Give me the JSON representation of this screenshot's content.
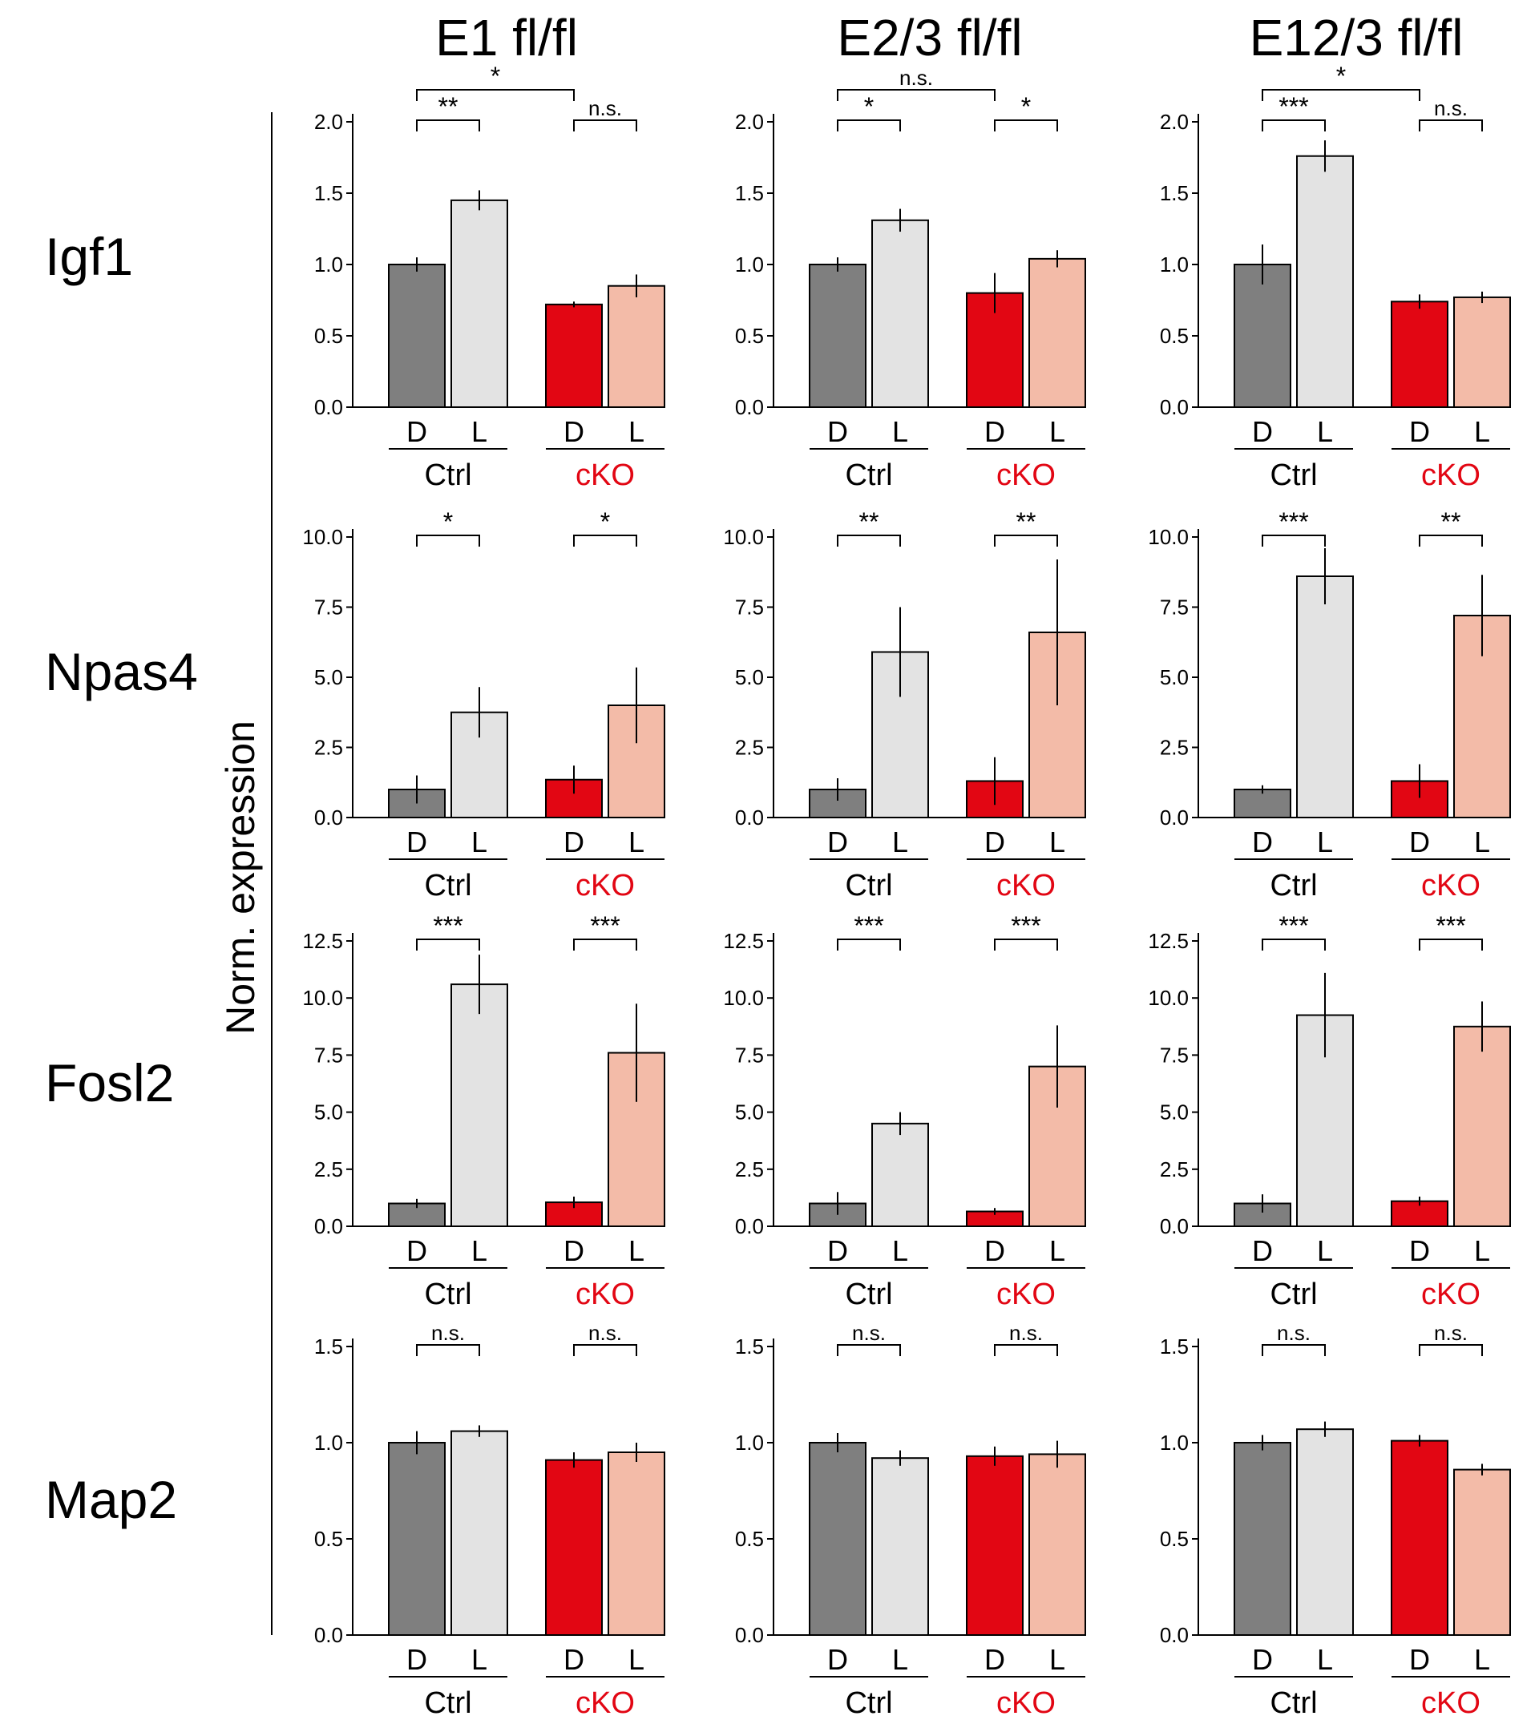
{
  "figure": {
    "column_titles": [
      "E1 fl/fl",
      "E2/3 fl/fl",
      "E12/3 fl/fl"
    ],
    "row_labels": [
      "Igf1",
      "Npas4",
      "Fosl2",
      "Map2"
    ],
    "y_axis_label": "Norm. expression",
    "bar_labels": [
      "D",
      "L",
      "D",
      "L"
    ],
    "group_labels": [
      "Ctrl",
      "cKO"
    ],
    "colors": {
      "ctrl_dark": "#7f7f7f",
      "ctrl_light": "#e3e3e3",
      "cko_dark": "#e20613",
      "cko_light": "#f3bba8",
      "cko_text": "#e20613",
      "text": "#000000"
    }
  },
  "chart_data": [
    {
      "type": "bar",
      "gene": "Igf1",
      "column": "E1 fl/fl",
      "categories": [
        "Ctrl D",
        "Ctrl L",
        "cKO D",
        "cKO L"
      ],
      "values": [
        1.0,
        1.45,
        0.72,
        0.85
      ],
      "errors": [
        0.05,
        0.07,
        0.02,
        0.08
      ],
      "ylim": [
        0,
        2.0
      ],
      "yticks": [
        0.0,
        0.5,
        1.0,
        1.5,
        2.0
      ],
      "ytick_labels": [
        "0.0",
        "0.5",
        "1.0",
        "1.5",
        "2.0"
      ],
      "significance": [
        {
          "pair": [
            0,
            1
          ],
          "label": "**",
          "level": 1
        },
        {
          "pair": [
            2,
            3
          ],
          "label": "n.s.",
          "level": 1
        },
        {
          "pair": [
            0,
            2
          ],
          "label": "*",
          "level": 2
        }
      ]
    },
    {
      "type": "bar",
      "gene": "Igf1",
      "column": "E2/3 fl/fl",
      "categories": [
        "Ctrl D",
        "Ctrl L",
        "cKO D",
        "cKO L"
      ],
      "values": [
        1.0,
        1.31,
        0.8,
        1.04
      ],
      "errors": [
        0.05,
        0.08,
        0.14,
        0.06
      ],
      "ylim": [
        0,
        2.0
      ],
      "yticks": [
        0.0,
        0.5,
        1.0,
        1.5,
        2.0
      ],
      "ytick_labels": [
        "0.0",
        "0.5",
        "1.0",
        "1.5",
        "2.0"
      ],
      "significance": [
        {
          "pair": [
            0,
            1
          ],
          "label": "*",
          "level": 1
        },
        {
          "pair": [
            2,
            3
          ],
          "label": "*",
          "level": 1
        },
        {
          "pair": [
            0,
            2
          ],
          "label": "n.s.",
          "level": 2
        }
      ]
    },
    {
      "type": "bar",
      "gene": "Igf1",
      "column": "E12/3 fl/fl",
      "categories": [
        "Ctrl D",
        "Ctrl L",
        "cKO D",
        "cKO L"
      ],
      "values": [
        1.0,
        1.76,
        0.74,
        0.77
      ],
      "errors": [
        0.14,
        0.11,
        0.05,
        0.04
      ],
      "ylim": [
        0,
        2.0
      ],
      "yticks": [
        0.0,
        0.5,
        1.0,
        1.5,
        2.0
      ],
      "ytick_labels": [
        "0.0",
        "0.5",
        "1.0",
        "1.5",
        "2.0"
      ],
      "significance": [
        {
          "pair": [
            0,
            1
          ],
          "label": "***",
          "level": 1
        },
        {
          "pair": [
            2,
            3
          ],
          "label": "n.s.",
          "level": 1
        },
        {
          "pair": [
            0,
            2
          ],
          "label": "*",
          "level": 2
        }
      ]
    },
    {
      "type": "bar",
      "gene": "Npas4",
      "column": "E1 fl/fl",
      "categories": [
        "Ctrl D",
        "Ctrl L",
        "cKO D",
        "cKO L"
      ],
      "values": [
        1.0,
        3.75,
        1.35,
        4.0
      ],
      "errors": [
        0.5,
        0.9,
        0.5,
        1.35
      ],
      "ylim": [
        0,
        10.0
      ],
      "yticks": [
        0.0,
        2.5,
        5.0,
        7.5,
        10.0
      ],
      "ytick_labels": [
        "0.0",
        "2.5",
        "5.0",
        "7.5",
        "10.0"
      ],
      "significance": [
        {
          "pair": [
            0,
            1
          ],
          "label": "*",
          "level": 1
        },
        {
          "pair": [
            2,
            3
          ],
          "label": "*",
          "level": 1
        }
      ]
    },
    {
      "type": "bar",
      "gene": "Npas4",
      "column": "E2/3 fl/fl",
      "categories": [
        "Ctrl D",
        "Ctrl L",
        "cKO D",
        "cKO L"
      ],
      "values": [
        1.0,
        5.9,
        1.3,
        6.6
      ],
      "errors": [
        0.4,
        1.6,
        0.85,
        2.6
      ],
      "ylim": [
        0,
        10.0
      ],
      "yticks": [
        0.0,
        2.5,
        5.0,
        7.5,
        10.0
      ],
      "ytick_labels": [
        "0.0",
        "2.5",
        "5.0",
        "7.5",
        "10.0"
      ],
      "significance": [
        {
          "pair": [
            0,
            1
          ],
          "label": "**",
          "level": 1
        },
        {
          "pair": [
            2,
            3
          ],
          "label": "**",
          "level": 1
        }
      ]
    },
    {
      "type": "bar",
      "gene": "Npas4",
      "column": "E12/3 fl/fl",
      "categories": [
        "Ctrl D",
        "Ctrl L",
        "cKO D",
        "cKO L"
      ],
      "values": [
        1.0,
        8.6,
        1.3,
        7.2
      ],
      "errors": [
        0.15,
        1.0,
        0.6,
        1.45
      ],
      "ylim": [
        0,
        10.0
      ],
      "yticks": [
        0.0,
        2.5,
        5.0,
        7.5,
        10.0
      ],
      "ytick_labels": [
        "0.0",
        "2.5",
        "5.0",
        "7.5",
        "10.0"
      ],
      "significance": [
        {
          "pair": [
            0,
            1
          ],
          "label": "***",
          "level": 1
        },
        {
          "pair": [
            2,
            3
          ],
          "label": "**",
          "level": 1
        }
      ]
    },
    {
      "type": "bar",
      "gene": "Fosl2",
      "column": "E1 fl/fl",
      "categories": [
        "Ctrl D",
        "Ctrl L",
        "cKO D",
        "cKO L"
      ],
      "values": [
        1.0,
        10.6,
        1.05,
        7.6
      ],
      "errors": [
        0.2,
        1.3,
        0.25,
        2.15
      ],
      "ylim": [
        0,
        12.5
      ],
      "yticks": [
        0.0,
        2.5,
        5.0,
        7.5,
        10.0,
        12.5
      ],
      "ytick_labels": [
        "0.0",
        "2.5",
        "5.0",
        "7.5",
        "10.0",
        "12.5"
      ],
      "significance": [
        {
          "pair": [
            0,
            1
          ],
          "label": "***",
          "level": 1
        },
        {
          "pair": [
            2,
            3
          ],
          "label": "***",
          "level": 1
        }
      ]
    },
    {
      "type": "bar",
      "gene": "Fosl2",
      "column": "E2/3 fl/fl",
      "categories": [
        "Ctrl D",
        "Ctrl L",
        "cKO D",
        "cKO L"
      ],
      "values": [
        1.0,
        4.5,
        0.65,
        7.0
      ],
      "errors": [
        0.5,
        0.5,
        0.15,
        1.8
      ],
      "ylim": [
        0,
        12.5
      ],
      "yticks": [
        0.0,
        2.5,
        5.0,
        7.5,
        10.0,
        12.5
      ],
      "ytick_labels": [
        "0.0",
        "2.5",
        "5.0",
        "7.5",
        "10.0",
        "12.5"
      ],
      "significance": [
        {
          "pair": [
            0,
            1
          ],
          "label": "***",
          "level": 1
        },
        {
          "pair": [
            2,
            3
          ],
          "label": "***",
          "level": 1
        }
      ]
    },
    {
      "type": "bar",
      "gene": "Fosl2",
      "column": "E12/3 fl/fl",
      "categories": [
        "Ctrl D",
        "Ctrl L",
        "cKO D",
        "cKO L"
      ],
      "values": [
        1.0,
        9.25,
        1.1,
        8.75
      ],
      "errors": [
        0.4,
        1.85,
        0.2,
        1.1
      ],
      "ylim": [
        0,
        12.5
      ],
      "yticks": [
        0.0,
        2.5,
        5.0,
        7.5,
        10.0,
        12.5
      ],
      "ytick_labels": [
        "0.0",
        "2.5",
        "5.0",
        "7.5",
        "10.0",
        "12.5"
      ],
      "significance": [
        {
          "pair": [
            0,
            1
          ],
          "label": "***",
          "level": 1
        },
        {
          "pair": [
            2,
            3
          ],
          "label": "***",
          "level": 1
        }
      ]
    },
    {
      "type": "bar",
      "gene": "Map2",
      "column": "E1 fl/fl",
      "categories": [
        "Ctrl D",
        "Ctrl L",
        "cKO D",
        "cKO L"
      ],
      "values": [
        1.0,
        1.06,
        0.91,
        0.95
      ],
      "errors": [
        0.06,
        0.03,
        0.04,
        0.05
      ],
      "ylim": [
        0,
        1.5
      ],
      "yticks": [
        0.0,
        0.5,
        1.0,
        1.5
      ],
      "ytick_labels": [
        "0.0",
        "0.5",
        "1.0",
        "1.5"
      ],
      "significance": [
        {
          "pair": [
            0,
            1
          ],
          "label": "n.s.",
          "level": 1
        },
        {
          "pair": [
            2,
            3
          ],
          "label": "n.s.",
          "level": 1
        }
      ]
    },
    {
      "type": "bar",
      "gene": "Map2",
      "column": "E2/3 fl/fl",
      "categories": [
        "Ctrl D",
        "Ctrl L",
        "cKO D",
        "cKO L"
      ],
      "values": [
        1.0,
        0.92,
        0.93,
        0.94
      ],
      "errors": [
        0.05,
        0.04,
        0.05,
        0.07
      ],
      "ylim": [
        0,
        1.5
      ],
      "yticks": [
        0.0,
        0.5,
        1.0,
        1.5
      ],
      "ytick_labels": [
        "0.0",
        "0.5",
        "1.0",
        "1.5"
      ],
      "significance": [
        {
          "pair": [
            0,
            1
          ],
          "label": "n.s.",
          "level": 1
        },
        {
          "pair": [
            2,
            3
          ],
          "label": "n.s.",
          "level": 1
        }
      ]
    },
    {
      "type": "bar",
      "gene": "Map2",
      "column": "E12/3 fl/fl",
      "categories": [
        "Ctrl D",
        "Ctrl L",
        "cKO D",
        "cKO L"
      ],
      "values": [
        1.0,
        1.07,
        1.01,
        0.86
      ],
      "errors": [
        0.04,
        0.04,
        0.03,
        0.03
      ],
      "ylim": [
        0,
        1.5
      ],
      "yticks": [
        0.0,
        0.5,
        1.0,
        1.5
      ],
      "ytick_labels": [
        "0.0",
        "0.5",
        "1.0",
        "1.5"
      ],
      "significance": [
        {
          "pair": [
            0,
            1
          ],
          "label": "n.s.",
          "level": 1
        },
        {
          "pair": [
            2,
            3
          ],
          "label": "n.s.",
          "level": 1
        }
      ]
    }
  ]
}
